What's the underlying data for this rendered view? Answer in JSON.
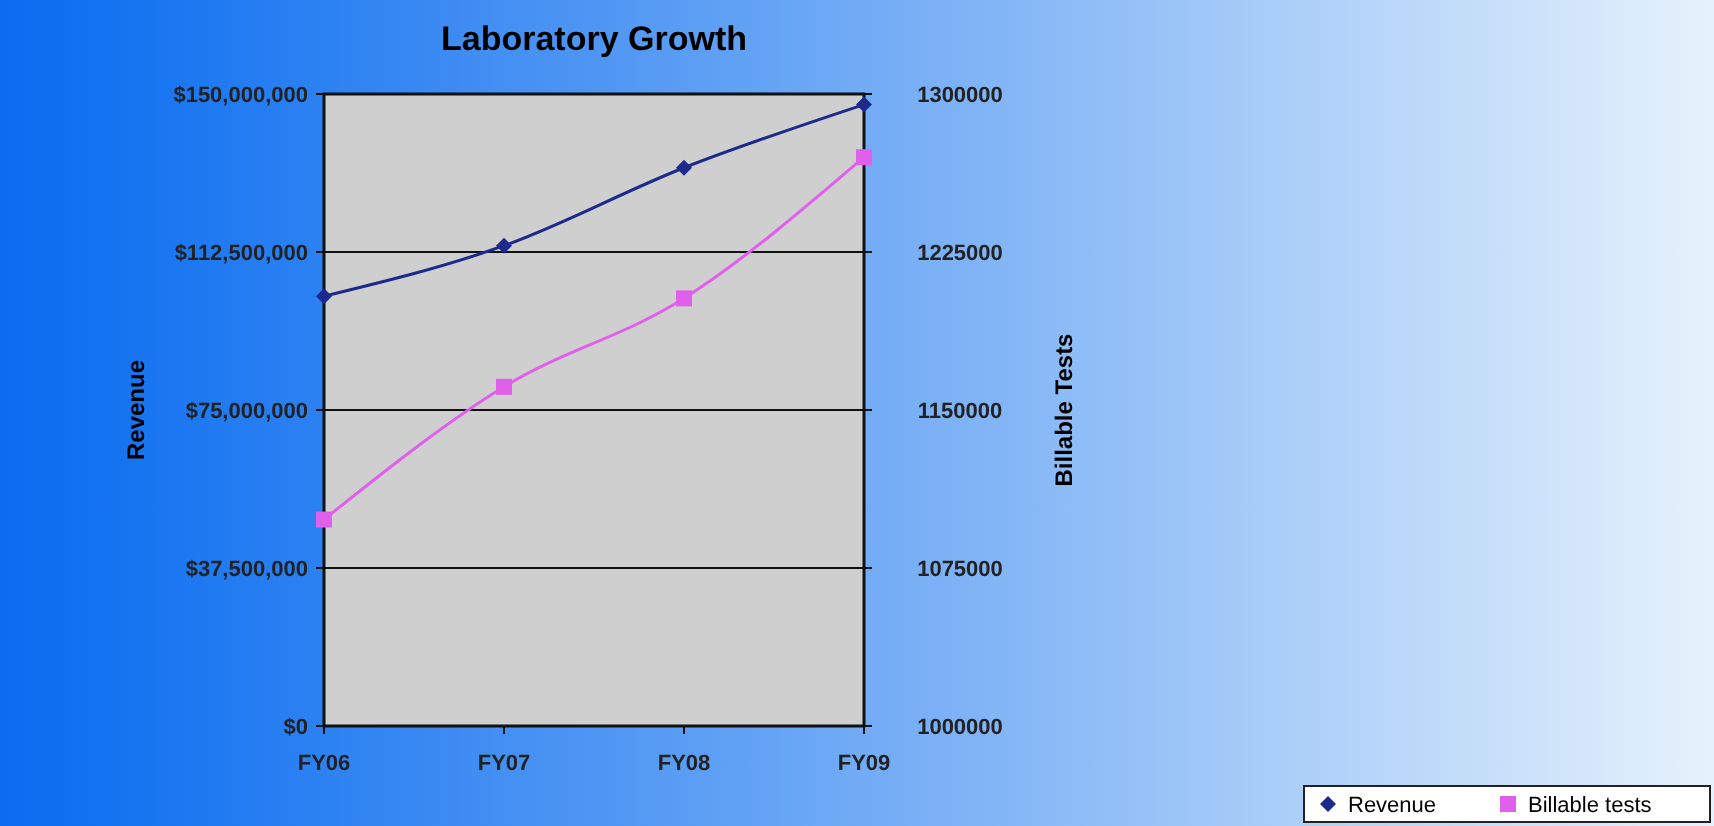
{
  "chart_data": {
    "type": "line",
    "title": "Laboratory Growth",
    "ylabel": "Revenue",
    "y2label": "Billable Tests",
    "categories": [
      "FY06",
      "FY07",
      "FY08",
      "FY09"
    ],
    "series": [
      {
        "name": "Revenue",
        "color": "#1c2a8c",
        "values": [
          102000000,
          114000000,
          132500000,
          147500000
        ],
        "marker": "diamond"
      },
      {
        "name": "Billable tests",
        "color": "#e060ec",
        "values": [
          1098000,
          1161000,
          1203000,
          1270000
        ],
        "axis": "y2",
        "marker": "square"
      }
    ],
    "ylim": [
      0,
      150000000
    ],
    "yticks": [
      {
        "value": 0,
        "label": "$0"
      },
      {
        "value": 37500000,
        "label": "$37,500,000"
      },
      {
        "value": 75000000,
        "label": "$75,000,000"
      },
      {
        "value": 112500000,
        "label": "$112,500,000"
      },
      {
        "value": 150000000,
        "label": "$150,000,000"
      }
    ],
    "y2lim": [
      1000000,
      1300000
    ],
    "y2ticks": [
      1000000,
      1075000,
      1150000,
      1225000,
      1300000
    ],
    "grid": "y",
    "legend": "bottom right",
    "line_style": "solid"
  }
}
